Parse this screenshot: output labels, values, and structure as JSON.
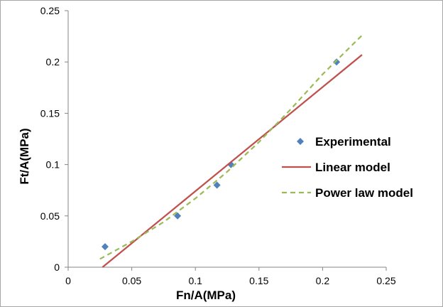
{
  "chart_data": {
    "type": "scatter",
    "xlabel": "Fn/A(MPa)",
    "ylabel": "Ft/A(MPa)",
    "xlim": [
      0,
      0.25
    ],
    "ylim": [
      0,
      0.25
    ],
    "x_ticks": [
      "0",
      "0.05",
      "0.1",
      "0.15",
      "0.2",
      "0.25"
    ],
    "y_ticks": [
      "0",
      "0.05",
      "0.1",
      "0.15",
      "0.2",
      "0.25"
    ],
    "grid": false,
    "legend_position": "right",
    "series": [
      {
        "name": "Experimental",
        "style": "markers",
        "marker": "diamond",
        "color": "#4f81bd",
        "x": [
          0.029,
          0.086,
          0.117,
          0.128,
          0.211
        ],
        "y": [
          0.02,
          0.05,
          0.08,
          0.1,
          0.2
        ]
      },
      {
        "name": "Linear model",
        "style": "solid",
        "color": "#c0504d",
        "x": [
          0.027,
          0.231
        ],
        "y": [
          0.0,
          0.207
        ]
      },
      {
        "name": "Power law model",
        "style": "dashed",
        "color": "#9bbb59",
        "x": [
          0.025,
          0.05,
          0.075,
          0.1,
          0.125,
          0.15,
          0.175,
          0.2,
          0.231
        ],
        "y": [
          0.008,
          0.025,
          0.044,
          0.067,
          0.093,
          0.122,
          0.154,
          0.188,
          0.226
        ]
      }
    ]
  }
}
